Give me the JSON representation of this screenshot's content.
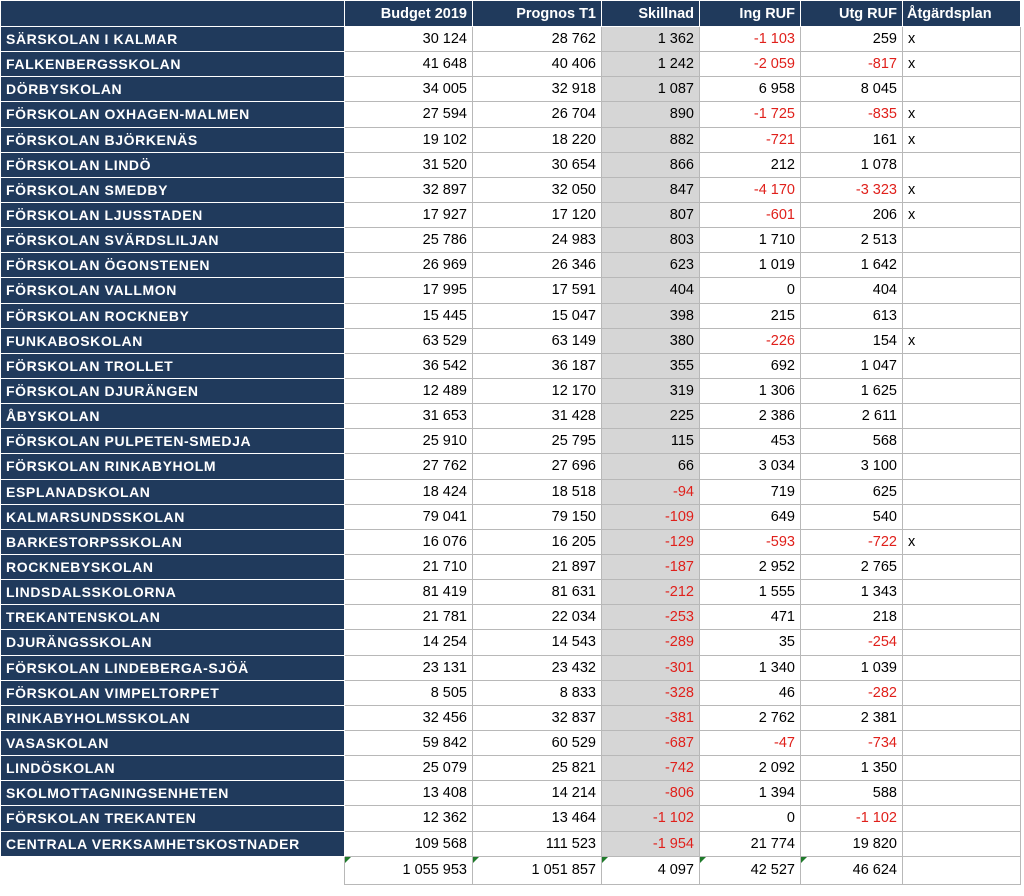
{
  "headers": {
    "budget": "Budget 2019",
    "prognos": "Prognos T1",
    "skillnad": "Skillnad",
    "ing_ruf": "Ing RUF",
    "utg_ruf": "Utg RUF",
    "atgardsplan": "Åtgärdsplan"
  },
  "rows": [
    {
      "name": "SÄRSKOLAN I KALMAR",
      "budget": "30 124",
      "prognos": "28 762",
      "skillnad": "1 362",
      "ing": "-1 103",
      "utg": "259",
      "plan": "x"
    },
    {
      "name": "FALKENBERGSSKOLAN",
      "budget": "41 648",
      "prognos": "40 406",
      "skillnad": "1 242",
      "ing": "-2 059",
      "utg": "-817",
      "plan": "x"
    },
    {
      "name": "DÖRBYSKOLAN",
      "budget": "34 005",
      "prognos": "32 918",
      "skillnad": "1 087",
      "ing": "6 958",
      "utg": "8 045",
      "plan": ""
    },
    {
      "name": "FÖRSKOLAN OXHAGEN-MALMEN",
      "budget": "27 594",
      "prognos": "26 704",
      "skillnad": "890",
      "ing": "-1 725",
      "utg": "-835",
      "plan": "x"
    },
    {
      "name": "FÖRSKOLAN BJÖRKENÄS",
      "budget": "19 102",
      "prognos": "18 220",
      "skillnad": "882",
      "ing": "-721",
      "utg": "161",
      "plan": "x"
    },
    {
      "name": "FÖRSKOLAN LINDÖ",
      "budget": "31 520",
      "prognos": "30 654",
      "skillnad": "866",
      "ing": "212",
      "utg": "1 078",
      "plan": ""
    },
    {
      "name": "FÖRSKOLAN SMEDBY",
      "budget": "32 897",
      "prognos": "32 050",
      "skillnad": "847",
      "ing": "-4 170",
      "utg": "-3 323",
      "plan": "x"
    },
    {
      "name": "FÖRSKOLAN LJUSSTADEN",
      "budget": "17 927",
      "prognos": "17 120",
      "skillnad": "807",
      "ing": "-601",
      "utg": "206",
      "plan": "x"
    },
    {
      "name": "FÖRSKOLAN SVÄRDSLILJAN",
      "budget": "25 786",
      "prognos": "24 983",
      "skillnad": "803",
      "ing": "1 710",
      "utg": "2 513",
      "plan": ""
    },
    {
      "name": "FÖRSKOLAN ÖGONSTENEN",
      "budget": "26 969",
      "prognos": "26 346",
      "skillnad": "623",
      "ing": "1 019",
      "utg": "1 642",
      "plan": ""
    },
    {
      "name": "FÖRSKOLAN VALLMON",
      "budget": "17 995",
      "prognos": "17 591",
      "skillnad": "404",
      "ing": "0",
      "utg": "404",
      "plan": ""
    },
    {
      "name": "FÖRSKOLAN ROCKNEBY",
      "budget": "15 445",
      "prognos": "15 047",
      "skillnad": "398",
      "ing": "215",
      "utg": "613",
      "plan": ""
    },
    {
      "name": "FUNKABOSKOLAN",
      "budget": "63 529",
      "prognos": "63 149",
      "skillnad": "380",
      "ing": "-226",
      "utg": "154",
      "plan": "x"
    },
    {
      "name": "FÖRSKOLAN TROLLET",
      "budget": "36 542",
      "prognos": "36 187",
      "skillnad": "355",
      "ing": "692",
      "utg": "1 047",
      "plan": ""
    },
    {
      "name": "FÖRSKOLAN DJURÄNGEN",
      "budget": "12 489",
      "prognos": "12 170",
      "skillnad": "319",
      "ing": "1 306",
      "utg": "1 625",
      "plan": ""
    },
    {
      "name": "ÅBYSKOLAN",
      "budget": "31 653",
      "prognos": "31 428",
      "skillnad": "225",
      "ing": "2 386",
      "utg": "2 611",
      "plan": ""
    },
    {
      "name": "FÖRSKOLAN PULPETEN-SMEDJA",
      "budget": "25 910",
      "prognos": "25 795",
      "skillnad": "115",
      "ing": "453",
      "utg": "568",
      "plan": ""
    },
    {
      "name": "FÖRSKOLAN RINKABYHOLM",
      "budget": "27 762",
      "prognos": "27 696",
      "skillnad": "66",
      "ing": "3 034",
      "utg": "3 100",
      "plan": ""
    },
    {
      "name": "ESPLANADSKOLAN",
      "budget": "18 424",
      "prognos": "18 518",
      "skillnad": "-94",
      "ing": "719",
      "utg": "625",
      "plan": ""
    },
    {
      "name": "KALMARSUNDSSKOLAN",
      "budget": "79 041",
      "prognos": "79 150",
      "skillnad": "-109",
      "ing": "649",
      "utg": "540",
      "plan": ""
    },
    {
      "name": "BARKESTORPSSKOLAN",
      "budget": "16 076",
      "prognos": "16 205",
      "skillnad": "-129",
      "ing": "-593",
      "utg": "-722",
      "plan": "x"
    },
    {
      "name": "ROCKNEBYSKOLAN",
      "budget": "21 710",
      "prognos": "21 897",
      "skillnad": "-187",
      "ing": "2 952",
      "utg": "2 765",
      "plan": ""
    },
    {
      "name": "LINDSDALSSKOLORNA",
      "budget": "81 419",
      "prognos": "81 631",
      "skillnad": "-212",
      "ing": "1 555",
      "utg": "1 343",
      "plan": ""
    },
    {
      "name": "TREKANTENSKOLAN",
      "budget": "21 781",
      "prognos": "22 034",
      "skillnad": "-253",
      "ing": "471",
      "utg": "218",
      "plan": ""
    },
    {
      "name": "DJURÄNGSSKOLAN",
      "budget": "14 254",
      "prognos": "14 543",
      "skillnad": "-289",
      "ing": "35",
      "utg": "-254",
      "plan": ""
    },
    {
      "name": "FÖRSKOLAN LINDEBERGA-SJÖÄ",
      "budget": "23 131",
      "prognos": "23 432",
      "skillnad": "-301",
      "ing": "1 340",
      "utg": "1 039",
      "plan": ""
    },
    {
      "name": "FÖRSKOLAN VIMPELTORPET",
      "budget": "8 505",
      "prognos": "8 833",
      "skillnad": "-328",
      "ing": "46",
      "utg": "-282",
      "plan": ""
    },
    {
      "name": "RINKABYHOLMSSKOLAN",
      "budget": "32 456",
      "prognos": "32 837",
      "skillnad": "-381",
      "ing": "2 762",
      "utg": "2 381",
      "plan": ""
    },
    {
      "name": "VASASKOLAN",
      "budget": "59 842",
      "prognos": "60 529",
      "skillnad": "-687",
      "ing": "-47",
      "utg": "-734",
      "plan": ""
    },
    {
      "name": "LINDÖSKOLAN",
      "budget": "25 079",
      "prognos": "25 821",
      "skillnad": "-742",
      "ing": "2 092",
      "utg": "1 350",
      "plan": ""
    },
    {
      "name": "SKOLMOTTAGNINGSENHETEN",
      "budget": "13 408",
      "prognos": "14 214",
      "skillnad": "-806",
      "ing": "1 394",
      "utg": "588",
      "plan": ""
    },
    {
      "name": "FÖRSKOLAN TREKANTEN",
      "budget": "12 362",
      "prognos": "13 464",
      "skillnad": "-1 102",
      "ing": "0",
      "utg": "-1 102",
      "plan": ""
    },
    {
      "name": "CENTRALA VERKSAMHETSKOSTNADER",
      "budget": "109 568",
      "prognos": "111 523",
      "skillnad": "-1 954",
      "ing": "21 774",
      "utg": "19 820",
      "plan": ""
    }
  ],
  "totals": {
    "budget": "1 055 953",
    "prognos": "1 051 857",
    "skillnad": "4 097",
    "ing": "42 527",
    "utg": "46 624"
  },
  "colors": {
    "name_fill": "#203a5c",
    "negative_text": "#e0201b",
    "skillnad_fill": "#d6d6d6"
  }
}
